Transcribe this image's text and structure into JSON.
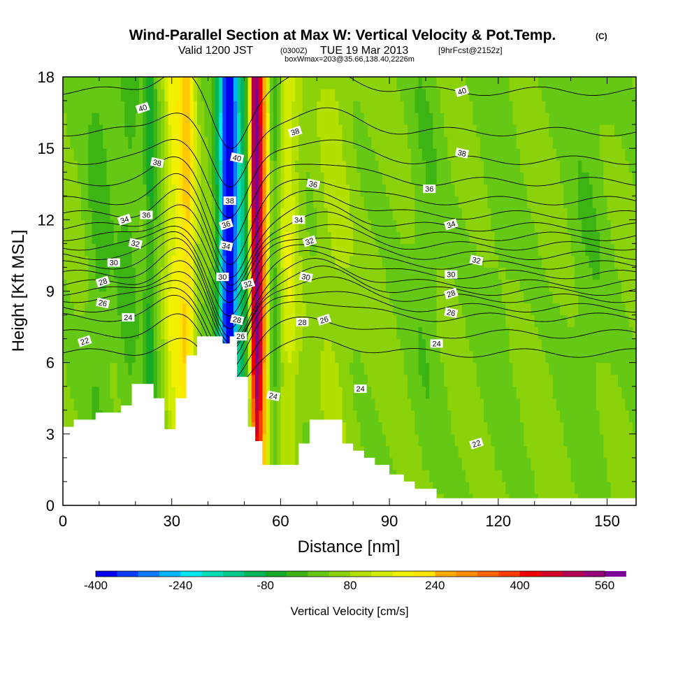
{
  "chart_data": {
    "type": "heatmap",
    "title": "Wind-Parallel Section at Max W: Vertical Velocity & Pot.Temp.",
    "title_mark": "(C)",
    "subtitle_valid": "Valid 1200 JST",
    "subtitle_z": "(0300Z)",
    "subtitle_date": "TUE 19 Mar 2013",
    "subtitle_fcst": "[9hrFcst@2152z]",
    "subtitle_box": "boxWmax=203@35.66,138.40,2226m",
    "xlabel": "Distance [nm]",
    "ylabel": "Height [Kft MSL]",
    "xlim": [
      0,
      158
    ],
    "ylim": [
      0,
      18
    ],
    "xticks": [
      "0",
      "30",
      "60",
      "90",
      "120",
      "150"
    ],
    "yticks": [
      "0",
      "3",
      "6",
      "9",
      "12",
      "15",
      "18"
    ],
    "colorbar": {
      "label": "Vertical Velocity [cm/s]",
      "ticks": [
        "-400",
        "-240",
        "-80",
        "80",
        "240",
        "400",
        "560"
      ],
      "range": [
        -400,
        560
      ],
      "step": 40,
      "colors": [
        "#0000ee",
        "#0a3cff",
        "#0a78ff",
        "#00b4ff",
        "#00e6f0",
        "#00dcb4",
        "#00c88c",
        "#00b45a",
        "#14aa28",
        "#3cb414",
        "#64c814",
        "#8cd20a",
        "#b4e000",
        "#d2ec00",
        "#f0f000",
        "#ffe600",
        "#ffc800",
        "#ffaa00",
        "#ff8c00",
        "#ff6400",
        "#ff3c00",
        "#ee0000",
        "#d20028",
        "#b40050",
        "#960078",
        "#780096"
      ]
    },
    "velocity_field": {
      "background_cm_s": 50,
      "features": [
        {
          "x": 46,
          "w": 2.0,
          "amp": -400
        },
        {
          "x": 44,
          "w": 2.5,
          "amp": -150
        },
        {
          "x": 50,
          "w": 3.5,
          "amp": -160
        },
        {
          "x": 53,
          "w": 1.6,
          "amp": 540
        },
        {
          "x": 55,
          "w": 2.0,
          "amp": 300
        },
        {
          "x": 58,
          "w": 2.0,
          "amp": -100
        },
        {
          "x": 62,
          "w": 3.0,
          "amp": 100
        },
        {
          "x": 34,
          "w": 2.5,
          "amp": 200
        },
        {
          "x": 30,
          "w": 2.0,
          "amp": 100
        },
        {
          "x": 24,
          "w": 1.8,
          "amp": -100
        },
        {
          "x": 10,
          "w": 4.0,
          "amp": -60
        },
        {
          "x": 18,
          "w": 3.0,
          "amp": -60
        },
        {
          "x": 75,
          "w": 4.0,
          "amp": 40
        },
        {
          "x": 100,
          "w": 5.0,
          "amp": -40
        },
        {
          "x": 120,
          "w": 6.0,
          "amp": -30
        },
        {
          "x": 145,
          "w": 6.0,
          "amp": -40
        }
      ]
    },
    "terrain_kft": [
      [
        0,
        3.3
      ],
      [
        3,
        3.3
      ],
      [
        3,
        3.6
      ],
      [
        9,
        3.6
      ],
      [
        9,
        3.9
      ],
      [
        16,
        3.9
      ],
      [
        16,
        4.2
      ],
      [
        19,
        4.2
      ],
      [
        19,
        5.1
      ],
      [
        25,
        5.1
      ],
      [
        25,
        4.5
      ],
      [
        28,
        4.5
      ],
      [
        28,
        3.2
      ],
      [
        31,
        3.2
      ],
      [
        31,
        4.5
      ],
      [
        34,
        4.5
      ],
      [
        34,
        6.3
      ],
      [
        37,
        6.3
      ],
      [
        37,
        7.1
      ],
      [
        44,
        7.1
      ],
      [
        44,
        6.8
      ],
      [
        46,
        6.8
      ],
      [
        46,
        7.1
      ],
      [
        48,
        7.1
      ],
      [
        48,
        5.4
      ],
      [
        51,
        5.4
      ],
      [
        51,
        3.3
      ],
      [
        53,
        3.3
      ],
      [
        53,
        2.7
      ],
      [
        55,
        2.7
      ],
      [
        55,
        1.7
      ],
      [
        65,
        1.7
      ],
      [
        65,
        2.6
      ],
      [
        68,
        2.6
      ],
      [
        68,
        3.6
      ],
      [
        77,
        3.6
      ],
      [
        77,
        2.6
      ],
      [
        80,
        2.6
      ],
      [
        80,
        2.3
      ],
      [
        83,
        2.3
      ],
      [
        83,
        2.0
      ],
      [
        86,
        2.0
      ],
      [
        86,
        1.7
      ],
      [
        90,
        1.7
      ],
      [
        90,
        1.3
      ],
      [
        94,
        1.3
      ],
      [
        94,
        1.0
      ],
      [
        97,
        1.0
      ],
      [
        97,
        0.7
      ],
      [
        103,
        0.7
      ],
      [
        103,
        0.3
      ],
      [
        158,
        0.3
      ]
    ],
    "theta_isentropes": {
      "levels": [
        22,
        23,
        24,
        25,
        26,
        27,
        28,
        29,
        30,
        31,
        32,
        33,
        34,
        35,
        36,
        37,
        38,
        39,
        40
      ],
      "base_heights_kft": [
        6.4,
        7.2,
        7.9,
        8.3,
        8.7,
        9.0,
        9.3,
        9.7,
        10.1,
        10.5,
        10.9,
        11.3,
        11.7,
        12.2,
        12.8,
        13.6,
        14.5,
        15.7,
        17.4
      ],
      "wave": [
        {
          "x": 46,
          "w": 7,
          "amp": -2.6
        },
        {
          "x": 32,
          "w": 8,
          "amp": 1.0
        },
        {
          "x": 70,
          "w": 14,
          "amp": 0.9
        }
      ]
    },
    "contour_labels": [
      {
        "text": "40",
        "x": 22,
        "y": 16.7
      },
      {
        "text": "38",
        "x": 26,
        "y": 14.4
      },
      {
        "text": "36",
        "x": 23,
        "y": 12.2
      },
      {
        "text": "34",
        "x": 17,
        "y": 12.0
      },
      {
        "text": "32",
        "x": 20,
        "y": 11.0
      },
      {
        "text": "30",
        "x": 14,
        "y": 10.2
      },
      {
        "text": "28",
        "x": 11,
        "y": 9.4
      },
      {
        "text": "26",
        "x": 11,
        "y": 8.5
      },
      {
        "text": "24",
        "x": 18,
        "y": 7.9
      },
      {
        "text": "22",
        "x": 6,
        "y": 6.9
      },
      {
        "text": "40",
        "x": 48,
        "y": 14.6
      },
      {
        "text": "38",
        "x": 46,
        "y": 12.8
      },
      {
        "text": "36",
        "x": 45,
        "y": 11.8
      },
      {
        "text": "34",
        "x": 45,
        "y": 10.9
      },
      {
        "text": "30",
        "x": 44,
        "y": 9.6
      },
      {
        "text": "32",
        "x": 51,
        "y": 9.3
      },
      {
        "text": "28",
        "x": 48,
        "y": 7.8
      },
      {
        "text": "26",
        "x": 49,
        "y": 7.1
      },
      {
        "text": "38",
        "x": 64,
        "y": 15.7
      },
      {
        "text": "36",
        "x": 69,
        "y": 13.5
      },
      {
        "text": "34",
        "x": 65,
        "y": 12.0
      },
      {
        "text": "32",
        "x": 68,
        "y": 11.1
      },
      {
        "text": "30",
        "x": 67,
        "y": 9.6
      },
      {
        "text": "28",
        "x": 66,
        "y": 7.7
      },
      {
        "text": "26",
        "x": 72,
        "y": 7.8
      },
      {
        "text": "24",
        "x": 58,
        "y": 4.6
      },
      {
        "text": "24",
        "x": 82,
        "y": 4.9
      },
      {
        "text": "40",
        "x": 110,
        "y": 17.4
      },
      {
        "text": "38",
        "x": 110,
        "y": 14.8
      },
      {
        "text": "36",
        "x": 101,
        "y": 13.3
      },
      {
        "text": "34",
        "x": 107,
        "y": 11.8
      },
      {
        "text": "32",
        "x": 114,
        "y": 10.3
      },
      {
        "text": "30",
        "x": 107,
        "y": 9.7
      },
      {
        "text": "28",
        "x": 107,
        "y": 8.9
      },
      {
        "text": "26",
        "x": 107,
        "y": 8.1
      },
      {
        "text": "24",
        "x": 103,
        "y": 6.8
      },
      {
        "text": "22",
        "x": 114,
        "y": 2.6
      }
    ]
  }
}
